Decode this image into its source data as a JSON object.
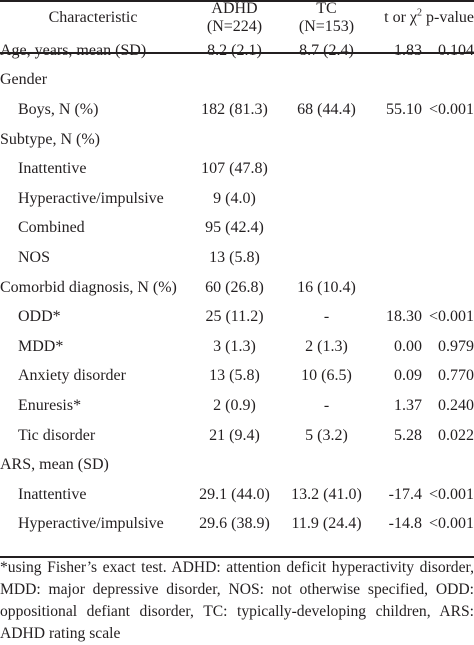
{
  "header": {
    "characteristic": "Characteristic",
    "adhd_label": "ADHD",
    "adhd_n": "(N=224)",
    "tc_label": "TC",
    "tc_n": "(N=153)",
    "stat_label": "t or χ",
    "stat_sup": "2",
    "p_label": "p-value"
  },
  "rows": [
    {
      "label": "Age, years, mean (SD)",
      "adhd": "8.2 (2.1)",
      "tc": "8.7 (2.4)",
      "stat": "1.83",
      "p": "0.104",
      "indent": false
    },
    {
      "label": "Gender",
      "adhd": "",
      "tc": "",
      "stat": "",
      "p": "",
      "indent": false
    },
    {
      "label": "Boys, N (%)",
      "adhd": "182 (81.3)",
      "tc": "68 (44.4)",
      "stat": "55.10",
      "p": "<0.001",
      "indent": true
    },
    {
      "label": "Subtype, N (%)",
      "adhd": "",
      "tc": "",
      "stat": "",
      "p": "",
      "indent": false
    },
    {
      "label": "Inattentive",
      "adhd": "107 (47.8)",
      "tc": "",
      "stat": "",
      "p": "",
      "indent": true
    },
    {
      "label": "Hyperactive/impulsive",
      "adhd": "9 (4.0)",
      "tc": "",
      "stat": "",
      "p": "",
      "indent": true
    },
    {
      "label": "Combined",
      "adhd": "95 (42.4)",
      "tc": "",
      "stat": "",
      "p": "",
      "indent": true
    },
    {
      "label": "NOS",
      "adhd": "13 (5.8)",
      "tc": "",
      "stat": "",
      "p": "",
      "indent": true
    },
    {
      "label": "Comorbid diagnosis, N (%)",
      "adhd": "60 (26.8)",
      "tc": "16 (10.4)",
      "stat": "",
      "p": "",
      "indent": false
    },
    {
      "label": "ODD*",
      "adhd": "25 (11.2)",
      "tc": "-",
      "stat": "18.30",
      "p": "<0.001",
      "indent": true
    },
    {
      "label": "MDD*",
      "adhd": "3 (1.3)",
      "tc": "2 (1.3)",
      "stat": "0.00",
      "p": "0.979",
      "indent": true
    },
    {
      "label": "Anxiety disorder",
      "adhd": "13 (5.8)",
      "tc": "10 (6.5)",
      "stat": "0.09",
      "p": "0.770",
      "indent": true
    },
    {
      "label": "Enuresis*",
      "adhd": "2 (0.9)",
      "tc": "-",
      "stat": "1.37",
      "p": "0.240",
      "indent": true
    },
    {
      "label": "Tic disorder",
      "adhd": "21 (9.4)",
      "tc": "5 (3.2)",
      "stat": "5.28",
      "p": "0.022",
      "indent": true
    },
    {
      "label": "ARS, mean (SD)",
      "adhd": "",
      "tc": "",
      "stat": "",
      "p": "",
      "indent": false
    },
    {
      "label": "Inattentive",
      "adhd": "29.1 (44.0)",
      "tc": "13.2 (41.0)",
      "stat": "-17.4",
      "p": "<0.001",
      "indent": true
    },
    {
      "label": "Hyperactive/impulsive",
      "adhd": "29.6 (38.9)",
      "tc": "11.9 (24.4)",
      "stat": "-14.8",
      "p": "<0.001",
      "indent": true
    }
  ],
  "footnote": "*using Fisher’s exact test. ADHD: attention deficit hyperactivity disorder, MDD: major depressive disorder, NOS: not otherwise specified, ODD: oppositional defiant disorder, TC: typically-developing children, ARS: ADHD rating scale"
}
